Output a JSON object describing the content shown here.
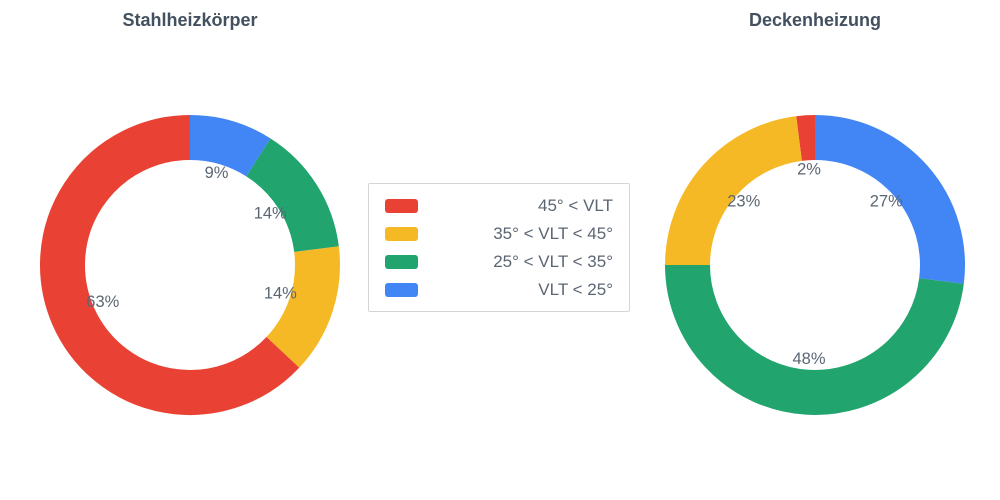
{
  "chart_data": [
    {
      "type": "pie",
      "subtype": "donut",
      "title": "Stahlheizkörper",
      "hole": 0.7,
      "direction": "counterclockwise",
      "rotation_deg": 0,
      "labels": [
        "45° < VLT",
        "35° < VLT < 45°",
        "25° < VLT < 35°",
        "VLT < 25°"
      ],
      "values": [
        63,
        14,
        14,
        9
      ],
      "value_labels": [
        "63%",
        "14%",
        "14%",
        "9%"
      ],
      "colors": [
        "#E94235",
        "#F6B926",
        "#21A46D",
        "#4285F4"
      ]
    },
    {
      "type": "pie",
      "subtype": "donut",
      "title": "Deckenheizung",
      "hole": 0.7,
      "direction": "counterclockwise",
      "rotation_deg": 0,
      "labels": [
        "45° < VLT",
        "35° < VLT < 45°",
        "25° < VLT < 35°",
        "VLT < 25°"
      ],
      "values": [
        2,
        23,
        48,
        27
      ],
      "value_labels": [
        "2%",
        "23%",
        "48%",
        "27%"
      ],
      "colors": [
        "#E94235",
        "#F6B926",
        "#21A46D",
        "#4285F4"
      ]
    }
  ],
  "legend": {
    "position": "center",
    "items": [
      {
        "label": "45° < VLT",
        "color": "#E94235"
      },
      {
        "label": "35° < VLT < 45°",
        "color": "#F6B926"
      },
      {
        "label": "25° < VLT < 35°",
        "color": "#21A46D"
      },
      {
        "label": "VLT < 25°",
        "color": "#4285F4"
      }
    ]
  },
  "style": {
    "title_color": "#42505f",
    "label_color": "#5b6673",
    "background": "#ffffff",
    "legend_border": "#d5d5d5"
  }
}
